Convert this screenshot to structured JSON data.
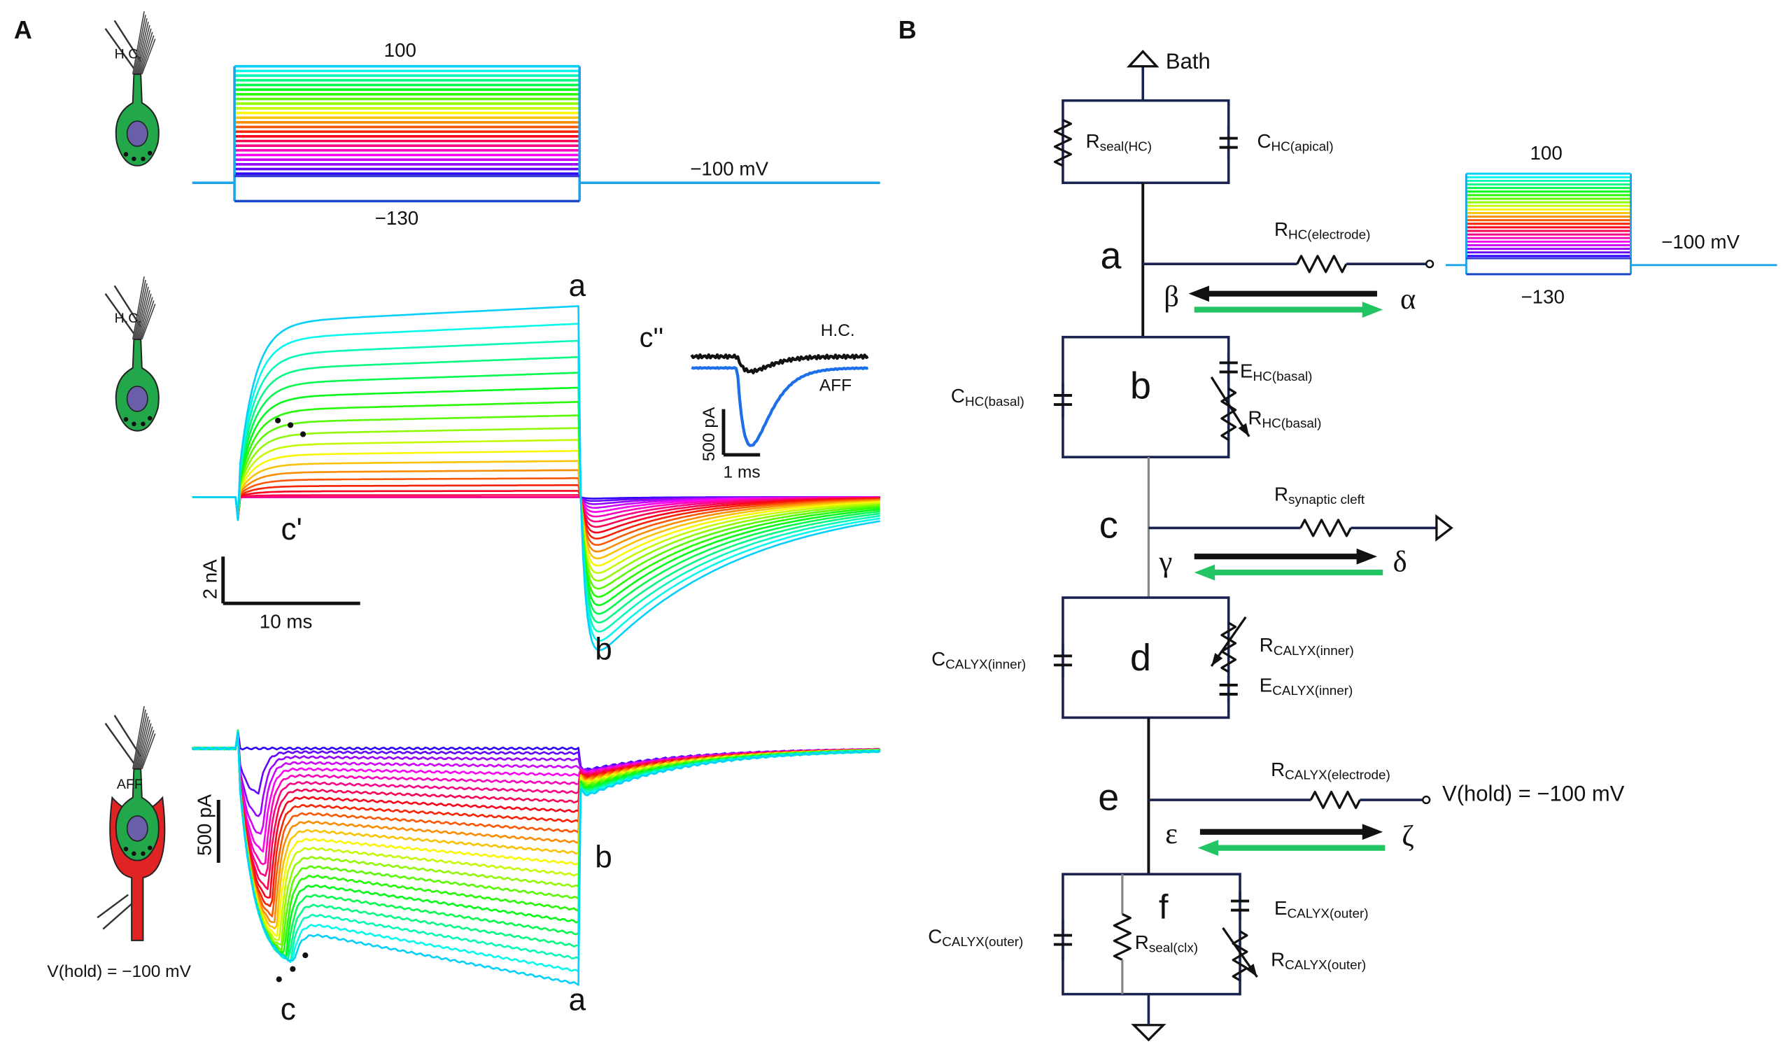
{
  "panel_a": {
    "label": "A",
    "protocol": {
      "cell_label": "H.C.",
      "top_step": "100",
      "bottom_step": "−130",
      "holding": "−100 mV"
    },
    "hc_recording": {
      "cell_label": "H.C.",
      "marker_a": "a",
      "marker_b": "b",
      "marker_c_prime": "c'",
      "scale_y": "2 nA",
      "scale_x": "10 ms",
      "inset": {
        "label": "c''",
        "trace_hc": "H.C.",
        "trace_aff": "AFF",
        "scale_y": "500 pA",
        "scale_x": "1 ms"
      }
    },
    "aff_recording": {
      "cell_label": "AFF",
      "scale_y": "500 pA",
      "marker_b": "b",
      "marker_c": "c",
      "marker_a": "a",
      "holding": "V(hold) = −100 mV"
    }
  },
  "panel_b": {
    "label": "B",
    "bath": "Bath",
    "r_seal_hc": {
      "main": "R",
      "sub": "seal(HC)"
    },
    "c_hc_apical": {
      "main": "C",
      "sub": "HC(apical)"
    },
    "node_a": "a",
    "r_hc_electrode": {
      "main": "R",
      "sub": "HC(electrode)"
    },
    "protocol": {
      "top_step": "100",
      "bottom_step": "−130",
      "holding": "−100 mV"
    },
    "beta": "β",
    "alpha": "α",
    "node_b": "b",
    "c_hc_basal": {
      "main": "C",
      "sub": "HC(basal)"
    },
    "e_hc_basal": {
      "main": "E",
      "sub": "HC(basal)"
    },
    "r_hc_basal": {
      "main": "R",
      "sub": "HC(basal)"
    },
    "node_c": "c",
    "r_synaptic_cleft": {
      "main": "R",
      "sub": "synaptic cleft"
    },
    "gamma": "γ",
    "delta": "δ",
    "node_d": "d",
    "c_calyx_inner": {
      "main": "C",
      "sub": "CALYX(inner)"
    },
    "r_calyx_inner": {
      "main": "R",
      "sub": "CALYX(inner)"
    },
    "e_calyx_inner": {
      "main": "E",
      "sub": "CALYX(inner)"
    },
    "node_e": "e",
    "r_calyx_electrode": {
      "main": "R",
      "sub": "CALYX(electrode)"
    },
    "v_hold": "V(hold) = −100 mV",
    "epsilon": "ε",
    "zeta": "ζ",
    "node_f": "f",
    "c_calyx_outer": {
      "main": "C",
      "sub": "CALYX(outer)"
    },
    "r_seal_clx": {
      "main": "R",
      "sub": "seal(clx)"
    },
    "e_calyx_outer": {
      "main": "E",
      "sub": "CALYX(outer)"
    },
    "r_calyx_outer": {
      "main": "R",
      "sub": "CALYX(outer)"
    }
  }
}
